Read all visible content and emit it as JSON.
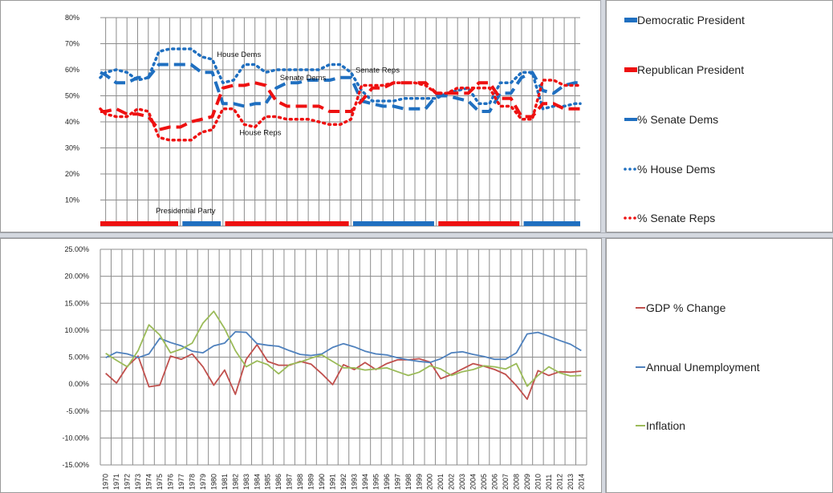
{
  "top_legend": [
    {
      "label": "Democratic President",
      "color": "#1f6fc0",
      "style": "thick-dash"
    },
    {
      "label": "Republican President",
      "color": "#ee1111",
      "style": "thick-dash"
    },
    {
      "label": "% Senate Dems",
      "color": "#1f6fc0",
      "style": "dash"
    },
    {
      "label": "% House Dems",
      "color": "#1f6fc0",
      "style": "dot"
    },
    {
      "label": "% Senate Reps",
      "color": "#ee1111",
      "style": "dot"
    }
  ],
  "bottom_legend": [
    {
      "label": "GDP % Change",
      "color": "#c0504d"
    },
    {
      "label": "Annual Unemployment",
      "color": "#4f81bd"
    },
    {
      "label": "Inflation",
      "color": "#9bbb59"
    }
  ],
  "chart_data": [
    {
      "type": "line",
      "ylim": [
        0,
        80
      ],
      "yticks": [
        "10%",
        "20%",
        "30%",
        "40%",
        "50%",
        "60%",
        "70%",
        "80%"
      ],
      "ytick_values": [
        10,
        20,
        30,
        40,
        50,
        60,
        70,
        80
      ],
      "grid": true,
      "annotations": [
        {
          "text": "House Dems",
          "x": 1982.5,
          "y": 65
        },
        {
          "text": "Senate Dems",
          "x": 1988.5,
          "y": 56
        },
        {
          "text": "Senate Reps",
          "x": 1995.5,
          "y": 59
        },
        {
          "text": "House Reps",
          "x": 1984.5,
          "y": 35
        },
        {
          "text": "Presidential Party",
          "x": 1977.5,
          "y": 5
        }
      ],
      "series": [
        {
          "name": "% Senate Dems",
          "color": "#1f6fc0",
          "style": "dash",
          "x": [
            1969.5,
            1970,
            1971,
            1972,
            1973,
            1974,
            1975,
            1976,
            1977,
            1978,
            1979,
            1980,
            1981,
            1982,
            1983,
            1984,
            1985,
            1986,
            1987,
            1988,
            1989,
            1990,
            1991,
            1992,
            1993,
            1994,
            1995,
            1996,
            1997,
            1998,
            1999,
            2000,
            2001,
            2002,
            2003,
            2004,
            2005,
            2006,
            2007,
            2008,
            2009,
            2010,
            2011,
            2012,
            2013,
            2014,
            2014.5
          ],
          "y": [
            59,
            58,
            55,
            55,
            57,
            57,
            62,
            62,
            62,
            62,
            59,
            59,
            47,
            47,
            46,
            47,
            47,
            53,
            55,
            55,
            56,
            56,
            56,
            57,
            57,
            48,
            47,
            46,
            46,
            45,
            45,
            45,
            50,
            50,
            49,
            48,
            44,
            44,
            51,
            51,
            57,
            59,
            52,
            51,
            54,
            55,
            55
          ]
        },
        {
          "name": "% House Dems",
          "color": "#1f6fc0",
          "style": "dot",
          "x": [
            1969.5,
            1970,
            1971,
            1972,
            1973,
            1974,
            1975,
            1976,
            1977,
            1978,
            1979,
            1980,
            1981,
            1982,
            1983,
            1984,
            1985,
            1986,
            1987,
            1988,
            1989,
            1990,
            1991,
            1992,
            1993,
            1994,
            1995,
            1996,
            1997,
            1998,
            1999,
            2000,
            2001,
            2002,
            2003,
            2004,
            2005,
            2006,
            2007,
            2008,
            2009,
            2010,
            2011,
            2012,
            2013,
            2014,
            2014.5
          ],
          "y": [
            57,
            59,
            60,
            59,
            56,
            57,
            67,
            68,
            68,
            68,
            65,
            64,
            55,
            56,
            62,
            62,
            59,
            60,
            60,
            60,
            60,
            60,
            62,
            62,
            59,
            52,
            48,
            48,
            48,
            49,
            49,
            49,
            49,
            51,
            52,
            53,
            47,
            47,
            55,
            55,
            59,
            59,
            45,
            46,
            46,
            47,
            47
          ]
        },
        {
          "name": "% Senate Reps",
          "color": "#ee1111",
          "style": "dot",
          "x": [
            1969.5,
            1970,
            1971,
            1972,
            1973,
            1974,
            1975,
            1976,
            1977,
            1978,
            1979,
            1980,
            1981,
            1982,
            1983,
            1984,
            1985,
            1986,
            1987,
            1988,
            1989,
            1990,
            1991,
            1992,
            1993,
            1994,
            1995,
            1996,
            1997,
            1998,
            1999,
            2000,
            2001,
            2002,
            2003,
            2004,
            2005,
            2006,
            2007,
            2008,
            2009,
            2010,
            2011,
            2012,
            2013,
            2014,
            2014.5
          ],
          "y": [
            45,
            43,
            42,
            42,
            45,
            44,
            34,
            33,
            33,
            33,
            36,
            37,
            45,
            45,
            39,
            38,
            42,
            42,
            41,
            41,
            41,
            40,
            39,
            39,
            41,
            54,
            54,
            54,
            55,
            55,
            55,
            54,
            51,
            51,
            53,
            53,
            53,
            53,
            46,
            46,
            41,
            41,
            56,
            56,
            54,
            54,
            54
          ]
        },
        {
          "name": "House Reps (dash)",
          "color": "#ee1111",
          "style": "dash",
          "x": [
            1969.5,
            1970,
            1971,
            1972,
            1973,
            1974,
            1975,
            1976,
            1977,
            1978,
            1979,
            1980,
            1981,
            1982,
            1983,
            1984,
            1985,
            1986,
            1987,
            1988,
            1989,
            1990,
            1991,
            1992,
            1993,
            1994,
            1995,
            1996,
            1997,
            1998,
            1999,
            2000,
            2001,
            2002,
            2003,
            2004,
            2005,
            2006,
            2007,
            2008,
            2009,
            2010,
            2011,
            2012,
            2013,
            2014,
            2014.5
          ],
          "y": [
            44,
            44,
            45,
            43,
            43,
            42,
            37,
            38,
            38,
            40,
            41,
            42,
            53,
            54,
            54,
            55,
            54,
            48,
            46,
            46,
            46,
            46,
            44,
            44,
            44,
            48,
            53,
            53,
            55,
            55,
            55,
            55,
            51,
            51,
            51,
            51,
            55,
            55,
            49,
            49,
            42,
            42,
            47,
            47,
            45,
            45,
            45
          ]
        }
      ],
      "presidential_party": [
        {
          "party": "Republican President",
          "color": "#ee1111",
          "from": 1969.5,
          "to": 1976.8
        },
        {
          "party": "Democratic President",
          "color": "#1f6fc0",
          "from": 1977.2,
          "to": 1980.8
        },
        {
          "party": "Republican President",
          "color": "#ee1111",
          "from": 1981.2,
          "to": 1992.8
        },
        {
          "party": "Democratic President",
          "color": "#1f6fc0",
          "from": 1993.2,
          "to": 2000.8
        },
        {
          "party": "Republican President",
          "color": "#ee1111",
          "from": 2001.2,
          "to": 2008.8
        },
        {
          "party": "Democratic President",
          "color": "#1f6fc0",
          "from": 2009.2,
          "to": 2014.5
        }
      ]
    },
    {
      "type": "line",
      "ylim": [
        -15,
        25
      ],
      "yticks": [
        "-15.00%",
        "-10.00%",
        "-5.00%",
        "0.00%",
        "5.00%",
        "10.00%",
        "15.00%",
        "20.00%",
        "25.00%"
      ],
      "ytick_values": [
        -15,
        -10,
        -5,
        0,
        5,
        10,
        15,
        20,
        25
      ],
      "grid": true,
      "categories": [
        "1970",
        "1971",
        "1972",
        "1973",
        "1974",
        "1975",
        "1976",
        "1977",
        "1978",
        "1979",
        "1980",
        "1981",
        "1982",
        "1983",
        "1984",
        "1985",
        "1986",
        "1987",
        "1988",
        "1989",
        "1990",
        "1991",
        "1992",
        "1993",
        "1994",
        "1995",
        "1996",
        "1997",
        "1998",
        "1999",
        "2000",
        "2001",
        "2002",
        "2003",
        "2004",
        "2005",
        "2006",
        "2007",
        "2008",
        "2009",
        "2010",
        "2011",
        "2012",
        "2013",
        "2014"
      ],
      "series": [
        {
          "name": "GDP % Change",
          "color": "#c0504d",
          "values": [
            2.0,
            0.2,
            3.3,
            5.2,
            -0.5,
            -0.2,
            5.2,
            4.6,
            5.6,
            3.2,
            -0.2,
            2.6,
            -1.9,
            4.6,
            7.3,
            4.2,
            3.5,
            3.5,
            4.2,
            3.7,
            1.9,
            -0.1,
            3.6,
            2.7,
            4.0,
            2.7,
            3.8,
            4.5,
            4.5,
            4.7,
            4.1,
            1.0,
            1.8,
            2.8,
            3.8,
            3.3,
            2.7,
            1.8,
            -0.3,
            -2.8,
            2.5,
            1.6,
            2.3,
            2.2,
            2.4
          ]
        },
        {
          "name": "Annual Unemployment",
          "color": "#4f81bd",
          "values": [
            4.9,
            5.9,
            5.6,
            4.9,
            5.6,
            8.5,
            7.7,
            7.1,
            6.1,
            5.8,
            7.1,
            7.6,
            9.7,
            9.6,
            7.5,
            7.2,
            7.0,
            6.2,
            5.5,
            5.3,
            5.6,
            6.8,
            7.5,
            6.9,
            6.1,
            5.6,
            5.4,
            4.9,
            4.5,
            4.2,
            4.0,
            4.7,
            5.8,
            6.0,
            5.5,
            5.1,
            4.6,
            4.6,
            5.8,
            9.3,
            9.6,
            8.9,
            8.1,
            7.4,
            6.2
          ]
        },
        {
          "name": "Inflation",
          "color": "#9bbb59",
          "values": [
            5.7,
            4.4,
            3.2,
            6.2,
            11.0,
            9.1,
            5.8,
            6.5,
            7.6,
            11.3,
            13.5,
            10.3,
            6.2,
            3.2,
            4.3,
            3.6,
            1.9,
            3.6,
            4.1,
            4.8,
            5.4,
            4.2,
            3.0,
            3.0,
            2.6,
            2.8,
            3.0,
            2.3,
            1.6,
            2.2,
            3.4,
            2.8,
            1.6,
            2.3,
            2.7,
            3.4,
            3.2,
            2.8,
            3.8,
            -0.4,
            1.6,
            3.2,
            2.1,
            1.5,
            1.6
          ]
        }
      ]
    }
  ]
}
